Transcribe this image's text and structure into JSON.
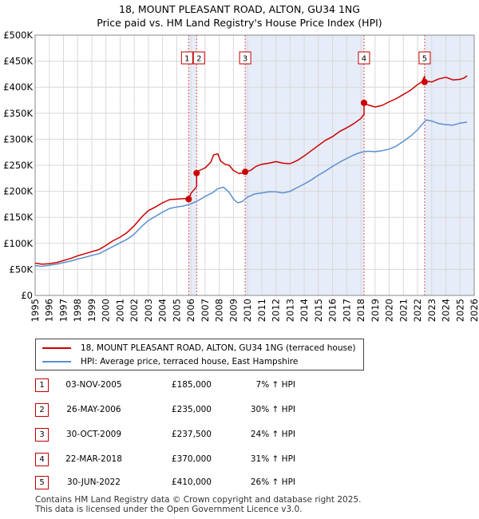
{
  "title": "18, MOUNT PLEASANT ROAD, ALTON, GU34 1NG",
  "subtitle": "Price paid vs. HM Land Registry's House Price Index (HPI)",
  "colors": {
    "price_paid": "#cc0000",
    "hpi": "#5b8fd0",
    "shade": "#e6ecf8",
    "grid": "#d8d8d8",
    "marker_line": "#e05050"
  },
  "chart_data": {
    "type": "line",
    "title": "18, MOUNT PLEASANT ROAD, ALTON, GU34 1NG",
    "subtitle": "Price paid vs. HM Land Registry's House Price Index (HPI)",
    "xlim": [
      1995,
      2026
    ],
    "ylim": [
      0,
      500000
    ],
    "x_ticks": [
      1995,
      1996,
      1997,
      1998,
      1999,
      2000,
      2001,
      2002,
      2003,
      2004,
      2005,
      2006,
      2007,
      2008,
      2009,
      2010,
      2011,
      2012,
      2013,
      2014,
      2015,
      2016,
      2017,
      2018,
      2019,
      2020,
      2021,
      2022,
      2023,
      2024,
      2025,
      2026
    ],
    "x_tick_labels": [
      "1995",
      "1996",
      "1997",
      "1998",
      "1999",
      "2000",
      "2001",
      "2002",
      "2003",
      "2004",
      "2005",
      "2006",
      "2007",
      "2008",
      "2009",
      "2010",
      "2011",
      "2012",
      "2013",
      "2014",
      "2015",
      "2016",
      "2017",
      "2018",
      "2019",
      "2020",
      "2021",
      "2022",
      "2023",
      "2024",
      "2025",
      "2026"
    ],
    "y_ticks": [
      0,
      50000,
      100000,
      150000,
      200000,
      250000,
      300000,
      350000,
      400000,
      450000,
      500000
    ],
    "y_tick_labels": [
      "£0",
      "£50K",
      "£100K",
      "£150K",
      "£200K",
      "£250K",
      "£300K",
      "£350K",
      "£400K",
      "£450K",
      "£500K"
    ],
    "grid": true,
    "series": [
      {
        "name": "18, MOUNT PLEASANT ROAD, ALTON, GU34 1NG (terraced house)",
        "x": [
          1995.0,
          1995.5,
          1996.0,
          1996.5,
          1997.0,
          1997.5,
          1998.0,
          1998.5,
          1999.0,
          1999.5,
          2000.0,
          2000.5,
          2001.0,
          2001.5,
          2002.0,
          2002.5,
          2003.0,
          2003.5,
          2004.0,
          2004.5,
          2005.0,
          2005.5,
          2005.84,
          2005.84,
          2006.0,
          2006.4,
          2006.4,
          2006.6,
          2007.0,
          2007.4,
          2007.6,
          2007.9,
          2008.1,
          2008.4,
          2008.7,
          2009.0,
          2009.4,
          2009.83,
          2009.83,
          2010.2,
          2010.6,
          2011.0,
          2011.5,
          2012.0,
          2012.5,
          2013.0,
          2013.5,
          2014.0,
          2014.5,
          2015.0,
          2015.5,
          2016.0,
          2016.5,
          2017.0,
          2017.5,
          2018.0,
          2018.22,
          2018.22,
          2018.5,
          2019.0,
          2019.5,
          2020.0,
          2020.5,
          2021.0,
          2021.5,
          2022.0,
          2022.3,
          2022.5,
          2022.5,
          2022.8,
          2023.0,
          2023.5,
          2024.0,
          2024.5,
          2025.0,
          2025.3,
          2025.5
        ],
        "values": [
          62000,
          60000,
          61000,
          63000,
          67000,
          71000,
          76000,
          80000,
          84000,
          88000,
          96000,
          105000,
          112000,
          121000,
          134000,
          150000,
          163000,
          170000,
          178000,
          184000,
          185000,
          186000,
          186000,
          185000,
          196000,
          209000,
          235000,
          240000,
          245000,
          256000,
          270000,
          272000,
          258000,
          252000,
          250000,
          240000,
          234000,
          236000,
          237500,
          240000,
          248000,
          252000,
          254000,
          257000,
          254000,
          253000,
          259000,
          268000,
          278000,
          288000,
          298000,
          305000,
          315000,
          322000,
          330000,
          340000,
          348000,
          370000,
          366000,
          362000,
          365000,
          372000,
          378000,
          386000,
          394000,
          405000,
          410000,
          421000,
          410000,
          411000,
          410000,
          416000,
          419000,
          414000,
          415000,
          418000,
          422000
        ],
        "color": "#cc0000"
      },
      {
        "name": "HPI: Average price, terraced house, East Hampshire",
        "x": [
          1995.0,
          1995.5,
          1996.0,
          1996.5,
          1997.0,
          1997.5,
          1998.0,
          1998.5,
          1999.0,
          1999.5,
          2000.0,
          2000.5,
          2001.0,
          2001.5,
          2002.0,
          2002.5,
          2003.0,
          2003.5,
          2004.0,
          2004.5,
          2005.0,
          2005.5,
          2006.0,
          2006.5,
          2007.0,
          2007.5,
          2007.9,
          2008.3,
          2008.7,
          2009.0,
          2009.3,
          2009.6,
          2010.0,
          2010.5,
          2011.0,
          2011.5,
          2012.0,
          2012.5,
          2013.0,
          2013.5,
          2014.0,
          2014.5,
          2015.0,
          2015.5,
          2016.0,
          2016.5,
          2017.0,
          2017.5,
          2018.0,
          2018.5,
          2019.0,
          2019.5,
          2020.0,
          2020.5,
          2021.0,
          2021.5,
          2022.0,
          2022.3,
          2022.6,
          2023.0,
          2023.5,
          2024.0,
          2024.5,
          2025.0,
          2025.5
        ],
        "values": [
          57000,
          56000,
          58000,
          60000,
          63000,
          66000,
          70000,
          73000,
          77000,
          80000,
          87000,
          94000,
          101000,
          108000,
          118000,
          132000,
          144000,
          152000,
          160000,
          167000,
          170000,
          172000,
          176000,
          182000,
          190000,
          197000,
          205000,
          208000,
          198000,
          185000,
          178000,
          180000,
          189000,
          195000,
          197000,
          199000,
          199000,
          197000,
          200000,
          207000,
          214000,
          222000,
          231000,
          239000,
          248000,
          256000,
          263000,
          270000,
          275000,
          277000,
          276000,
          278000,
          281000,
          287000,
          296000,
          306000,
          318000,
          328000,
          337000,
          335000,
          330000,
          328000,
          327000,
          331000,
          333000
        ],
        "color": "#5b8fd0"
      }
    ],
    "sales": [
      {
        "label": "1",
        "x": 2005.84,
        "value": 185000
      },
      {
        "label": "2",
        "x": 2006.4,
        "value": 235000
      },
      {
        "label": "3",
        "x": 2009.83,
        "value": 237500
      },
      {
        "label": "4",
        "x": 2018.22,
        "value": 370000
      },
      {
        "label": "5",
        "x": 2022.5,
        "value": 410000
      }
    ],
    "shaded_spans": [
      [
        2005.84,
        2006.4
      ],
      [
        2009.83,
        2018.22
      ],
      [
        2022.5,
        2026
      ]
    ]
  },
  "legend": {
    "price_label": "18, MOUNT PLEASANT ROAD, ALTON, GU34 1NG (terraced house)",
    "hpi_label": "HPI: Average price, terraced house, East Hampshire"
  },
  "transactions": [
    {
      "num": "1",
      "date": "03-NOV-2005",
      "price": "£185,000",
      "hpi": "7% ↑ HPI"
    },
    {
      "num": "2",
      "date": "26-MAY-2006",
      "price": "£235,000",
      "hpi": "30% ↑ HPI"
    },
    {
      "num": "3",
      "date": "30-OCT-2009",
      "price": "£237,500",
      "hpi": "24% ↑ HPI"
    },
    {
      "num": "4",
      "date": "22-MAR-2018",
      "price": "£370,000",
      "hpi": "31% ↑ HPI"
    },
    {
      "num": "5",
      "date": "30-JUN-2022",
      "price": "£410,000",
      "hpi": "26% ↑ HPI"
    }
  ],
  "footer": {
    "line1": "Contains HM Land Registry data © Crown copyright and database right 2025.",
    "line2": "This data is licensed under the Open Government Licence v3.0."
  }
}
